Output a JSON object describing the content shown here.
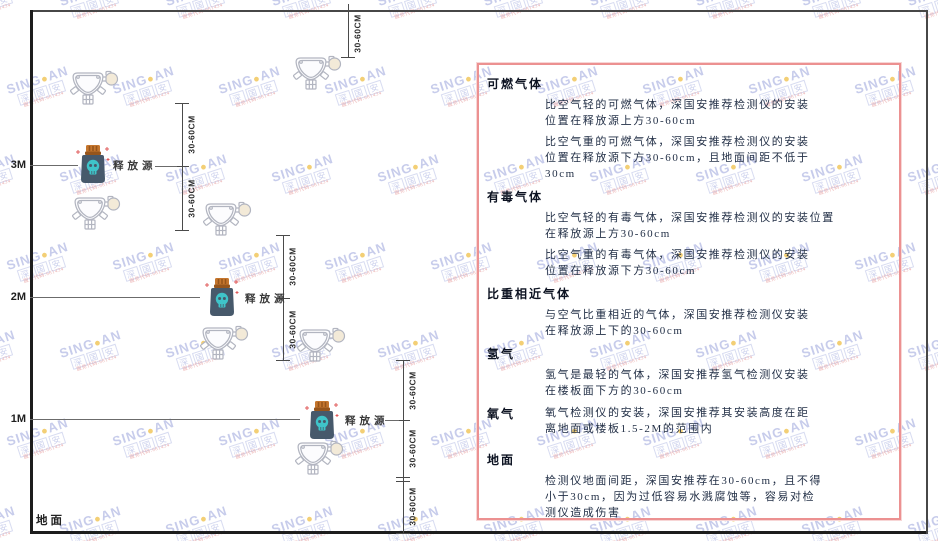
{
  "watermark": {
    "brand_prefix": "SING",
    "brand_suffix": "AN",
    "brand_dot": "●",
    "company_cjk": [
      "深",
      "国",
      "安"
    ],
    "code_text": "服务代码:681434",
    "brand_color": "#8f9ad7",
    "dot_color": "#f0c14e",
    "code_color": "#e08282"
  },
  "diagram": {
    "floor_label": "地面",
    "release_source_label": "释放源",
    "dimension_label": "30-60CM",
    "height_labels": [
      "3M",
      "2M",
      "1M"
    ]
  },
  "icons": {
    "detector": {
      "outline": "#b2b5c0",
      "body_fill": "#fcfcfe",
      "ball_fill": "#f3ead8"
    },
    "release_source": {
      "lid": "#c5762e",
      "lid_dark": "#96551c",
      "body": "#47596b",
      "skull": "#3fc4c9",
      "spark": "#e05b5b"
    }
  },
  "panel": {
    "border_color": "#ec9191",
    "sections": [
      {
        "heading": "可燃气体",
        "paragraphs": [
          [
            "比空气轻的可燃气体，深国安推荐检测仪的安装",
            "位置在释放源上方30-60cm"
          ],
          [
            "比空气重的可燃气体，深国安推荐检测仪的安装",
            "位置在释放源下方30-60cm，且地面间距不低于",
            "30cm"
          ]
        ]
      },
      {
        "heading": "有毒气体",
        "paragraphs": [
          [
            "比空气轻的有毒气体，深国安推荐检测仪的安装位置",
            "在释放源上方30-60cm"
          ],
          [
            "比空气重的有毒气体，深国安推荐检测仪的安装",
            "位置在释放源下方30-60cm"
          ]
        ]
      },
      {
        "heading": "比重相近气体",
        "paragraphs": [
          [
            "与空气比重相近的气体，深国安推荐检测仪安装",
            "在释放源上下的30-60cm"
          ]
        ]
      },
      {
        "heading": "氢气",
        "paragraphs": [
          [
            "氢气是最轻的气体，深国安推荐氢气检测仪安装",
            "在楼板面下方的30-60cm"
          ]
        ]
      },
      {
        "heading": "氧气",
        "paragraphs": [
          [
            "氧气检测仪的安装，深国安推荐其安装高度在距",
            "离地面或楼板1.5-2M的范围内"
          ]
        ]
      },
      {
        "heading": "地面",
        "paragraphs": [
          [
            "检测仪地面间距，深国安推荐在30-60cm，且不得",
            "小于30cm，因为过低容易水溅腐蚀等，容易对检",
            "测仪造成伤害"
          ]
        ]
      }
    ]
  }
}
